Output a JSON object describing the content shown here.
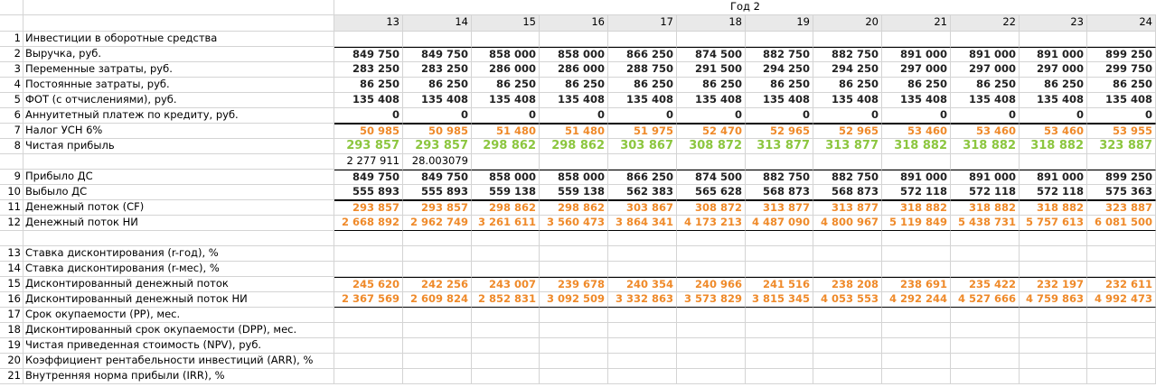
{
  "header": {
    "year_label": "Год 2",
    "months": [
      "13",
      "14",
      "15",
      "16",
      "17",
      "18",
      "19",
      "20",
      "21",
      "22",
      "23",
      "24"
    ]
  },
  "rows": [
    {
      "n": "1",
      "label": "Инвестиции в оборотные средства",
      "values": [
        "",
        "",
        "",
        "",
        "",
        "",
        "",
        "",
        "",
        "",
        "",
        ""
      ]
    },
    {
      "n": "2",
      "label": "Выручка, руб.",
      "values": [
        "849 750",
        "849 750",
        "858 000",
        "858 000",
        "866 250",
        "874 500",
        "882 750",
        "882 750",
        "891 000",
        "891 000",
        "891 000",
        "899 250"
      ]
    },
    {
      "n": "3",
      "label": "Переменные затраты, руб.",
      "values": [
        "283 250",
        "283 250",
        "286 000",
        "286 000",
        "288 750",
        "291 500",
        "294 250",
        "294 250",
        "297 000",
        "297 000",
        "297 000",
        "299 750"
      ]
    },
    {
      "n": "4",
      "label": "Постоянные затраты, руб.",
      "values": [
        "86 250",
        "86 250",
        "86 250",
        "86 250",
        "86 250",
        "86 250",
        "86 250",
        "86 250",
        "86 250",
        "86 250",
        "86 250",
        "86 250"
      ]
    },
    {
      "n": "5",
      "label": "ФОТ (с отчислениями), руб.",
      "values": [
        "135 408",
        "135 408",
        "135 408",
        "135 408",
        "135 408",
        "135 408",
        "135 408",
        "135 408",
        "135 408",
        "135 408",
        "135 408",
        "135 408"
      ]
    },
    {
      "n": "6",
      "label": "Аннуитетный платеж по кредиту, руб.",
      "values": [
        "0",
        "0",
        "0",
        "0",
        "0",
        "0",
        "0",
        "0",
        "0",
        "0",
        "0",
        "0"
      ]
    },
    {
      "n": "7",
      "label": "Налог УСН 6%",
      "values": [
        "50 985",
        "50 985",
        "51 480",
        "51 480",
        "51 975",
        "52 470",
        "52 965",
        "52 965",
        "53 460",
        "53 460",
        "53 460",
        "53 955"
      ]
    },
    {
      "n": "8",
      "label": "Чистая прибыль",
      "values": [
        "293 857",
        "293 857",
        "298 862",
        "298 862",
        "303 867",
        "308 872",
        "313 877",
        "313 877",
        "318 882",
        "318 882",
        "318 882",
        "323 887"
      ]
    },
    {
      "n": "",
      "label": "",
      "values": [
        "2 277 911",
        "28.003079",
        "",
        "",
        "",
        "",
        "",
        "",
        "",
        "",
        "",
        ""
      ]
    },
    {
      "n": "9",
      "label": "Прибыло ДС",
      "values": [
        "849 750",
        "849 750",
        "858 000",
        "858 000",
        "866 250",
        "874 500",
        "882 750",
        "882 750",
        "891 000",
        "891 000",
        "891 000",
        "899 250"
      ]
    },
    {
      "n": "10",
      "label": "Выбыло ДС",
      "values": [
        "555 893",
        "555 893",
        "559 138",
        "559 138",
        "562 383",
        "565 628",
        "568 873",
        "568 873",
        "572 118",
        "572 118",
        "572 118",
        "575 363"
      ]
    },
    {
      "n": "11",
      "label": "Денежный поток (CF)",
      "values": [
        "293 857",
        "293 857",
        "298 862",
        "298 862",
        "303 867",
        "308 872",
        "313 877",
        "313 877",
        "318 882",
        "318 882",
        "318 882",
        "323 887"
      ]
    },
    {
      "n": "12",
      "label": "Денежный поток НИ",
      "values": [
        "2 668 892",
        "2 962 749",
        "3 261 611",
        "3 560 473",
        "3 864 341",
        "4 173 213",
        "4 487 090",
        "4 800 967",
        "5 119 849",
        "5 438 731",
        "5 757 613",
        "6 081 500"
      ]
    },
    {
      "n": "",
      "label": "",
      "values": [
        "",
        "",
        "",
        "",
        "",
        "",
        "",
        "",
        "",
        "",
        "",
        ""
      ]
    },
    {
      "n": "13",
      "label": "Ставка дисконтирования (r-год), %",
      "values": [
        "",
        "",
        "",
        "",
        "",
        "",
        "",
        "",
        "",
        "",
        "",
        ""
      ]
    },
    {
      "n": "14",
      "label": "Ставка дисконтирования (r-мес), %",
      "values": [
        "",
        "",
        "",
        "",
        "",
        "",
        "",
        "",
        "",
        "",
        "",
        ""
      ]
    },
    {
      "n": "15",
      "label": "Дисконтированный денежный поток",
      "values": [
        "245 620",
        "242 256",
        "243 007",
        "239 678",
        "240 354",
        "240 966",
        "241 516",
        "238 208",
        "238 691",
        "235 422",
        "232 197",
        "232 611"
      ]
    },
    {
      "n": "16",
      "label": "Дисконтированный денежный поток НИ",
      "values": [
        "2 367 569",
        "2 609 824",
        "2 852 831",
        "3 092 509",
        "3 332 863",
        "3 573 829",
        "3 815 345",
        "4 053 553",
        "4 292 244",
        "4 527 666",
        "4 759 863",
        "4 992 473"
      ]
    },
    {
      "n": "17",
      "label": "Срок окупаемости (PP), мес.",
      "values": [
        "",
        "",
        "",
        "",
        "",
        "",
        "",
        "",
        "",
        "",
        "",
        ""
      ]
    },
    {
      "n": "18",
      "label": "Дисконтированный срок окупаемости (DPP), мес.",
      "values": [
        "",
        "",
        "",
        "",
        "",
        "",
        "",
        "",
        "",
        "",
        "",
        ""
      ]
    },
    {
      "n": "19",
      "label": "Чистая приведенная стоимость (NPV), руб.",
      "values": [
        "",
        "",
        "",
        "",
        "",
        "",
        "",
        "",
        "",
        "",
        "",
        ""
      ]
    },
    {
      "n": "20",
      "label": "Коэффициент рентабельности инвестиций (ARR), %",
      "values": [
        "",
        "",
        "",
        "",
        "",
        "",
        "",
        "",
        "",
        "",
        "",
        ""
      ]
    },
    {
      "n": "21",
      "label": "Внутренняя норма прибыли (IRR), %",
      "values": [
        "",
        "",
        "",
        "",
        "",
        "",
        "",
        "",
        "",
        "",
        "",
        ""
      ]
    }
  ],
  "colors": {
    "orange": "#ef8a2a",
    "green": "#8cc63f",
    "header_bg": "#e9e9e9"
  }
}
